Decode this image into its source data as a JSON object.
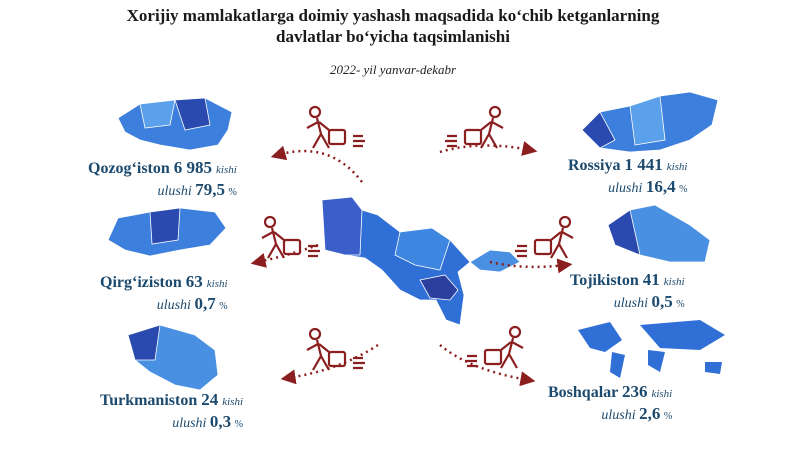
{
  "header": {
    "title_line1": "Xorijiy mamlakatlarga doimiy yashash maqsadida ko‘chib ketganlarning",
    "title_line2": "davlatlar bo‘yicha taqsimlanishi",
    "subtitle": "2022- yil yanvar-dekabr"
  },
  "countries": [
    {
      "name": "Qozog‘iston",
      "count": "6 985",
      "unit": "kishi",
      "share_label": "ulushi",
      "share": "79,5",
      "percent": "%"
    },
    {
      "name": "Qirg‘iziston",
      "count": "63",
      "unit": "kishi",
      "share_label": "ulushi",
      "share": "0,7",
      "percent": "%"
    },
    {
      "name": "Turkmaniston",
      "count": "24",
      "unit": "kishi",
      "share_label": "ulushi",
      "share": "0,3",
      "percent": "%"
    },
    {
      "name": "Rossiya",
      "count": "1 441",
      "unit": "kishi",
      "share_label": "ulushi",
      "share": "16,4",
      "percent": "%"
    },
    {
      "name": "Tojikiston",
      "count": "41",
      "unit": "kishi",
      "share_label": "ulushi",
      "share": "0,5",
      "percent": "%"
    },
    {
      "name": "Boshqalar",
      "count": "236",
      "unit": "kishi",
      "share_label": "ulushi",
      "share": "2,6",
      "percent": "%"
    }
  ]
}
